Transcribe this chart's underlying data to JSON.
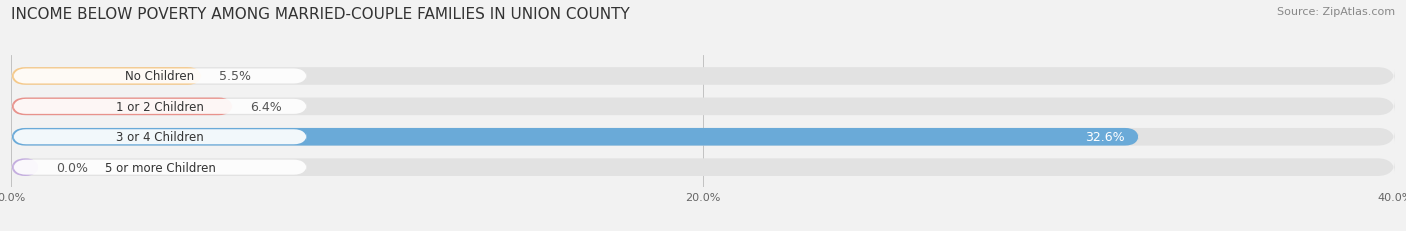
{
  "title": "INCOME BELOW POVERTY AMONG MARRIED-COUPLE FAMILIES IN UNION COUNTY",
  "source": "Source: ZipAtlas.com",
  "categories": [
    "No Children",
    "1 or 2 Children",
    "3 or 4 Children",
    "5 or more Children"
  ],
  "values": [
    5.5,
    6.4,
    32.6,
    0.0
  ],
  "bar_colors": [
    "#f5c98a",
    "#e8928c",
    "#6aaad8",
    "#c4aedf"
  ],
  "label_pill_colors": [
    "#f5c98a",
    "#e8928c",
    "#6aaad8",
    "#c4aedf"
  ],
  "label_colors": [
    "#444444",
    "#444444",
    "#444444",
    "#444444"
  ],
  "value_colors": [
    "#555555",
    "#555555",
    "#ffffff",
    "#555555"
  ],
  "background_color": "#f2f2f2",
  "bar_bg_color": "#e2e2e2",
  "xlim": [
    0,
    40
  ],
  "xticks": [
    0.0,
    20.0,
    40.0
  ],
  "xtick_labels": [
    "0.0%",
    "20.0%",
    "40.0%"
  ],
  "title_fontsize": 11,
  "source_fontsize": 8,
  "bar_label_fontsize": 9,
  "category_fontsize": 8.5,
  "bar_height": 0.58,
  "figsize": [
    14.06,
    2.32
  ],
  "dpi": 100
}
